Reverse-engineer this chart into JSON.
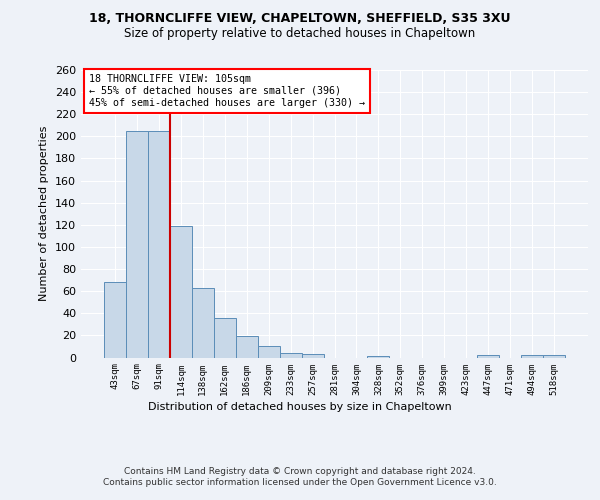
{
  "title1": "18, THORNCLIFFE VIEW, CHAPELTOWN, SHEFFIELD, S35 3XU",
  "title2": "Size of property relative to detached houses in Chapeltown",
  "xlabel": "Distribution of detached houses by size in Chapeltown",
  "ylabel": "Number of detached properties",
  "categories": [
    "43sqm",
    "67sqm",
    "91sqm",
    "114sqm",
    "138sqm",
    "162sqm",
    "186sqm",
    "209sqm",
    "233sqm",
    "257sqm",
    "281sqm",
    "304sqm",
    "328sqm",
    "352sqm",
    "376sqm",
    "399sqm",
    "423sqm",
    "447sqm",
    "471sqm",
    "494sqm",
    "518sqm"
  ],
  "values": [
    68,
    205,
    205,
    119,
    63,
    36,
    19,
    10,
    4,
    3,
    0,
    0,
    1,
    0,
    0,
    0,
    0,
    2,
    0,
    2,
    2
  ],
  "bar_color": "#c8d8e8",
  "bar_edge_color": "#5b8db8",
  "bg_color": "#eef2f8",
  "grid_color": "#ffffff",
  "vline_x": 2.5,
  "annotation_text": "18 THORNCLIFFE VIEW: 105sqm\n← 55% of detached houses are smaller (396)\n45% of semi-detached houses are larger (330) →",
  "annotation_box_color": "white",
  "annotation_box_edge": "red",
  "ylim": [
    0,
    260
  ],
  "yticks": [
    0,
    20,
    40,
    60,
    80,
    100,
    120,
    140,
    160,
    180,
    200,
    220,
    240,
    260
  ],
  "vline_color": "#cc0000",
  "footer": "Contains HM Land Registry data © Crown copyright and database right 2024.\nContains public sector information licensed under the Open Government Licence v3.0.",
  "figsize": [
    6.0,
    5.0
  ],
  "dpi": 100
}
